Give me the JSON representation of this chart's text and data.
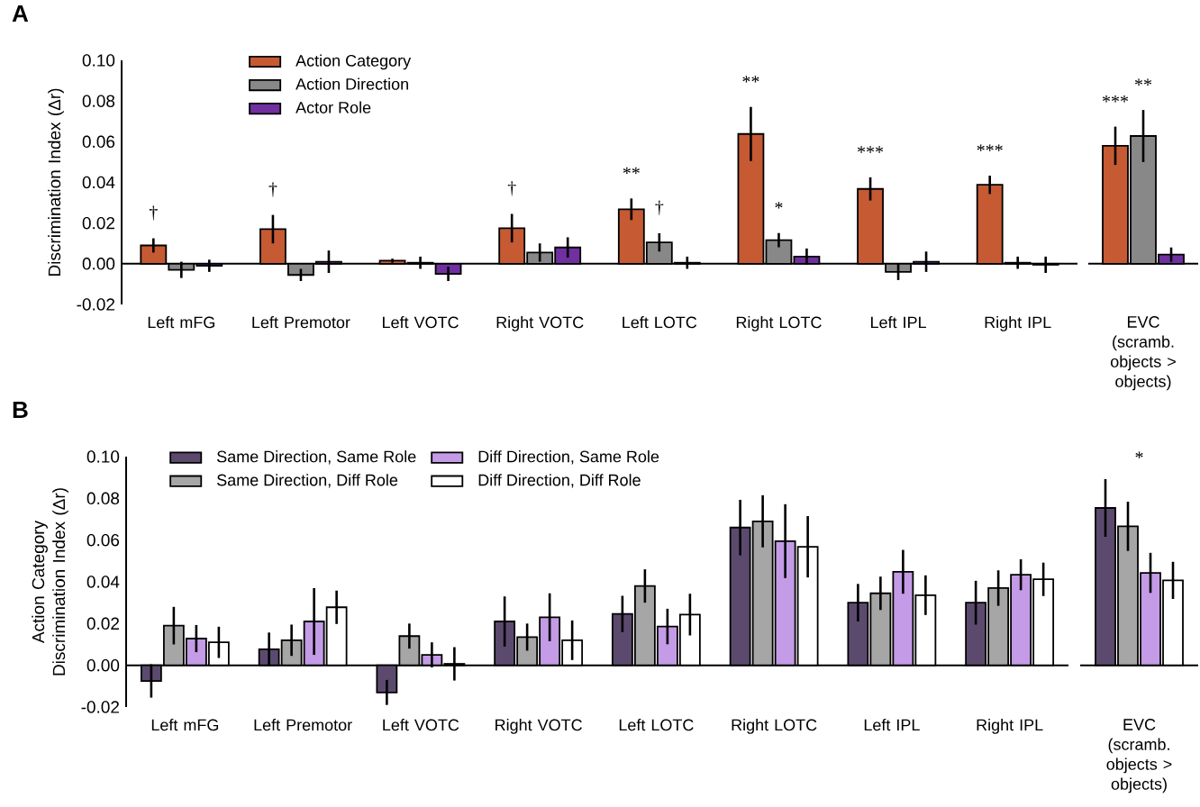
{
  "chart_data": [
    {
      "type": "bar",
      "title": "A",
      "ylabel": "Discrimination Index (Δr)",
      "categories": [
        "Left mFG",
        "Left Premotor",
        "Left VOTC",
        "Right VOTC",
        "Left LOTC",
        "Right LOTC",
        "Left IPL",
        "Right IPL"
      ],
      "series": [
        {
          "name": "Action Category",
          "color": "#c55a33",
          "values": [
            0.009,
            0.017,
            0.0015,
            0.0175,
            0.0268,
            0.0638,
            0.0368,
            0.0388
          ],
          "errors": [
            0.0035,
            0.007,
            0.001,
            0.007,
            0.0053,
            0.0133,
            0.0057,
            0.0045
          ]
        },
        {
          "name": "Action Direction",
          "color": "#888888",
          "values": [
            -0.003,
            -0.0055,
            0.0005,
            0.0055,
            0.0105,
            0.0116,
            -0.004,
            0.0005
          ],
          "errors": [
            0.004,
            0.003,
            0.003,
            0.0045,
            0.0045,
            0.0035,
            0.004,
            0.003
          ]
        },
        {
          "name": "Actor Role",
          "color": "#7030a0",
          "values": [
            -0.001,
            0.001,
            -0.005,
            0.008,
            0.0005,
            0.0035,
            0.001,
            -0.0005
          ],
          "errors": [
            0.003,
            0.0055,
            0.0035,
            0.005,
            0.003,
            0.004,
            0.005,
            0.004
          ]
        }
      ],
      "ylim": [
        -0.02,
        0.1
      ],
      "yticks": [
        {
          "value": -0.02,
          "label": "-0.02"
        },
        {
          "value": 0,
          "label": "0.00"
        },
        {
          "value": 0.02,
          "label": "0.02"
        },
        {
          "value": 0.04,
          "label": "0.04"
        },
        {
          "value": 0.06,
          "label": "0.06"
        },
        {
          "value": 0.08,
          "label": "0.08"
        },
        {
          "value": 0.1,
          "label": "0.10"
        }
      ],
      "legend": "top left",
      "annotations": [
        "†",
        "†",
        "†",
        "**",
        "†",
        "**",
        "*",
        "***",
        "***"
      ]
    },
    {
      "type": "bar",
      "categories": [
        "EVC (scramb. objects > objects)"
      ],
      "series": [
        {
          "color": "#c55a33",
          "values": [
            0.058
          ],
          "errors": [
            0.0094
          ]
        },
        {
          "color": "#888888",
          "values": [
            0.0628
          ],
          "errors": [
            0.0128
          ]
        },
        {
          "color": "#7030a0",
          "values": [
            0.0045
          ],
          "errors": [
            0.0035
          ]
        }
      ],
      "ylim": [
        -0.02,
        0.1
      ],
      "tick_labels": "x",
      "annotations": [
        "***",
        "**"
      ]
    },
    {
      "type": "bar",
      "title": "B",
      "ylabel": "Action Category Discrimination Index (Δr)",
      "categories": [
        "Left mFG",
        "Left Premotor",
        "Left VOTC",
        "Right VOTC",
        "Left LOTC",
        "Right LOTC",
        "Left IPL",
        "Right IPL"
      ],
      "series": [
        {
          "name": "Same Direction, Same Role",
          "color": "#5b4a6e",
          "values": [
            -0.0075,
            0.0077,
            -0.013,
            0.021,
            0.0246,
            0.066,
            0.03,
            0.03
          ],
          "errors": [
            0.008,
            0.008,
            0.006,
            0.012,
            0.0087,
            0.0133,
            0.009,
            0.0105
          ]
        },
        {
          "name": "Same Direction, Diff Role",
          "color": "#a6a6a6",
          "values": [
            0.019,
            0.012,
            0.014,
            0.0135,
            0.038,
            0.069,
            0.0345,
            0.037
          ],
          "errors": [
            0.009,
            0.0075,
            0.006,
            0.0065,
            0.008,
            0.0125,
            0.008,
            0.0085
          ]
        },
        {
          "name": "Diff Direction, Same Role",
          "color": "#c49be6",
          "values": [
            0.0128,
            0.021,
            0.005,
            0.023,
            0.0186,
            0.0595,
            0.0448,
            0.0434
          ],
          "errors": [
            0.0065,
            0.016,
            0.006,
            0.0115,
            0.0085,
            0.0177,
            0.0105,
            0.0074
          ]
        },
        {
          "name": "Diff Direction, Diff Role",
          "color": "#ffffff",
          "values": [
            0.011,
            0.0278,
            0.0007,
            0.012,
            0.0243,
            0.0568,
            0.0336,
            0.0412
          ],
          "errors": [
            0.0075,
            0.008,
            0.008,
            0.0095,
            0.01,
            0.0147,
            0.0095,
            0.008
          ]
        }
      ],
      "ylim": [
        -0.02,
        0.1
      ],
      "yticks": [
        {
          "value": -0.02,
          "label": "-0.02"
        },
        {
          "value": 0,
          "label": "0.00"
        },
        {
          "value": 0.02,
          "label": "0.02"
        },
        {
          "value": 0.04,
          "label": "0.04"
        },
        {
          "value": 0.06,
          "label": "0.06"
        },
        {
          "value": 0.08,
          "label": "0.08"
        },
        {
          "value": 0.1,
          "label": "0.10"
        }
      ],
      "legend": "top left"
    },
    {
      "type": "bar",
      "categories": [
        "EVC (scramb. objects > objects)"
      ],
      "series": [
        {
          "color": "#5b4a6e",
          "values": [
            0.0754
          ],
          "errors": [
            0.0138
          ]
        },
        {
          "color": "#a6a6a6",
          "values": [
            0.0666
          ],
          "errors": [
            0.0118
          ]
        },
        {
          "color": "#c49be6",
          "values": [
            0.0443
          ],
          "errors": [
            0.0096
          ]
        },
        {
          "color": "#ffffff",
          "values": [
            0.0407
          ],
          "errors": [
            0.0089
          ]
        }
      ],
      "ylim": [
        -0.02,
        0.1
      ],
      "tick_labels": "x",
      "annotations": [
        "*"
      ]
    }
  ]
}
